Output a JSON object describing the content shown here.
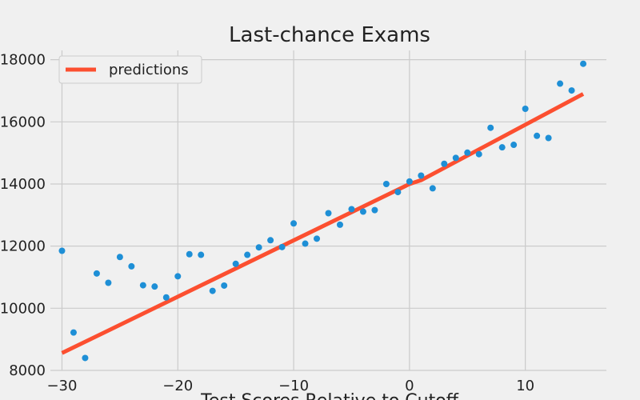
{
  "chart_data": {
    "type": "scatter",
    "title": "Last-chance Exams",
    "xlabel": "Test Scores Relative to Cutoff",
    "ylabel": "",
    "xlim": [
      -31,
      17
    ],
    "ylim": [
      8000,
      18300
    ],
    "xticks": [
      -30,
      -20,
      -10,
      0,
      10
    ],
    "yticks": [
      8000,
      10000,
      12000,
      14000,
      16000,
      18000
    ],
    "grid": true,
    "legend_position": "top-left",
    "colors": {
      "points": "#1e8fd6",
      "line": "#fc4f30",
      "grid": "#cbcbcb",
      "background": "#f0f0f0"
    },
    "series": [
      {
        "kind": "points",
        "x": [
          -30,
          -29,
          -28,
          -27,
          -26,
          -25,
          -24,
          -23,
          -22,
          -21,
          -20,
          -19,
          -18,
          -17,
          -16,
          -15,
          -14,
          -13,
          -12,
          -11,
          -10,
          -9,
          -8,
          -7,
          -6,
          -5,
          -4,
          -3,
          -2,
          -1,
          0,
          1,
          2,
          3,
          4,
          5,
          6,
          7,
          8,
          9,
          10,
          11,
          12,
          13,
          14,
          15
        ],
        "y": [
          11850,
          9220,
          8400,
          11120,
          10820,
          11650,
          11350,
          10740,
          10700,
          10350,
          11030,
          11740,
          11720,
          10560,
          10730,
          11430,
          11720,
          11960,
          12190,
          11970,
          12730,
          12080,
          12240,
          13060,
          12690,
          13190,
          13110,
          13160,
          14000,
          13740,
          14080,
          14270,
          13860,
          14650,
          14840,
          15010,
          14960,
          15810,
          15180,
          15260,
          16420,
          15550,
          15480,
          17230,
          17010,
          17870
        ]
      },
      {
        "kind": "line",
        "name": "predictions",
        "x": [
          -30,
          0,
          1,
          15
        ],
        "y": [
          8560,
          14000,
          14120,
          16900
        ]
      }
    ]
  }
}
